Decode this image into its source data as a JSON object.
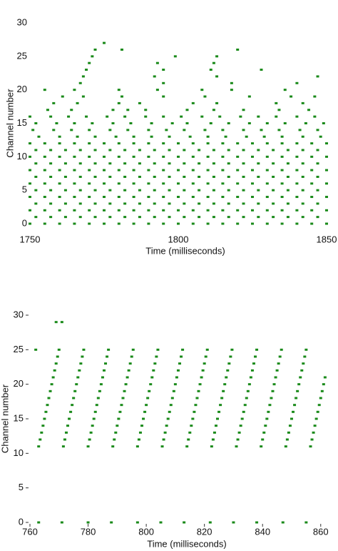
{
  "chart_data": [
    {
      "type": "raster",
      "xlabel": "Time (milliseconds)",
      "ylabel": "Channel number",
      "color": "#1a8a1a",
      "xlim": [
        1750,
        1850
      ],
      "ylim": [
        0,
        30
      ],
      "xticks": [
        1750,
        1800,
        1850
      ],
      "yticks": [
        0,
        5,
        10,
        15,
        20,
        25,
        30
      ],
      "tick_marks": false,
      "series": [
        {
          "y": 0,
          "x": [
            1750,
            1755,
            1760,
            1765,
            1770,
            1775,
            1780,
            1785,
            1790,
            1795,
            1800,
            1805,
            1810,
            1815,
            1820,
            1825,
            1830,
            1835,
            1840,
            1845,
            1850
          ]
        },
        {
          "y": 1,
          "x": [
            1752,
            1757,
            1762,
            1767,
            1772,
            1777,
            1782,
            1787,
            1792,
            1797,
            1802,
            1807,
            1812,
            1817,
            1822,
            1827,
            1832,
            1837,
            1842,
            1847
          ]
        },
        {
          "y": 2,
          "x": [
            1750,
            1755,
            1760,
            1765,
            1770,
            1775,
            1780,
            1785,
            1790,
            1795,
            1800,
            1805,
            1810,
            1815,
            1820,
            1825,
            1830,
            1835,
            1840,
            1845,
            1850
          ]
        },
        {
          "y": 3,
          "x": [
            1752,
            1757,
            1762,
            1767,
            1772,
            1777,
            1782,
            1787,
            1792,
            1797,
            1802,
            1807,
            1812,
            1817,
            1822,
            1827,
            1832,
            1837,
            1842,
            1847
          ]
        },
        {
          "y": 4,
          "x": [
            1750,
            1755,
            1760,
            1765,
            1770,
            1775,
            1780,
            1785,
            1790,
            1795,
            1800,
            1805,
            1810,
            1815,
            1820,
            1825,
            1830,
            1835,
            1840,
            1845,
            1850
          ]
        },
        {
          "y": 5,
          "x": [
            1752,
            1757,
            1762,
            1767,
            1772,
            1777,
            1782,
            1787,
            1792,
            1797,
            1802,
            1807,
            1812,
            1817,
            1822,
            1827,
            1832,
            1837,
            1842,
            1847
          ]
        },
        {
          "y": 6,
          "x": [
            1750,
            1755,
            1760,
            1765,
            1770,
            1775,
            1780,
            1785,
            1790,
            1795,
            1800,
            1805,
            1810,
            1815,
            1820,
            1825,
            1830,
            1835,
            1840,
            1845,
            1850
          ]
        },
        {
          "y": 7,
          "x": [
            1752,
            1757,
            1762,
            1767,
            1772,
            1777,
            1782,
            1787,
            1792,
            1797,
            1802,
            1807,
            1812,
            1817,
            1822,
            1827,
            1832,
            1837,
            1842,
            1847
          ]
        },
        {
          "y": 8,
          "x": [
            1750,
            1755,
            1760,
            1765,
            1770,
            1775,
            1780,
            1785,
            1790,
            1795,
            1800,
            1805,
            1810,
            1815,
            1820,
            1825,
            1830,
            1835,
            1840,
            1845,
            1850
          ]
        },
        {
          "y": 9,
          "x": [
            1752,
            1757,
            1762,
            1767,
            1772,
            1777,
            1782,
            1787,
            1792,
            1797,
            1802,
            1807,
            1812,
            1817,
            1822,
            1827,
            1832,
            1837,
            1842,
            1847
          ]
        },
        {
          "y": 10,
          "x": [
            1750,
            1755,
            1760,
            1765,
            1770,
            1775,
            1780,
            1785,
            1790,
            1795,
            1800,
            1805,
            1810,
            1815,
            1820,
            1825,
            1830,
            1835,
            1840,
            1845,
            1850
          ]
        },
        {
          "y": 11,
          "x": [
            1752,
            1757,
            1762,
            1767,
            1772,
            1777,
            1782,
            1787,
            1792,
            1797,
            1802,
            1807,
            1812,
            1817,
            1822,
            1827,
            1832,
            1837,
            1842,
            1847
          ]
        },
        {
          "y": 12,
          "x": [
            1750,
            1755,
            1760,
            1765,
            1770,
            1775,
            1780,
            1785,
            1790,
            1795,
            1800,
            1805,
            1810,
            1815,
            1820,
            1825,
            1830,
            1835,
            1840,
            1845,
            1850
          ]
        },
        {
          "y": 13,
          "x": [
            1753,
            1760,
            1766,
            1772,
            1779,
            1785,
            1791,
            1797,
            1804,
            1810,
            1816,
            1823,
            1829,
            1835,
            1842,
            1848
          ]
        },
        {
          "y": 14,
          "x": [
            1751,
            1758,
            1764,
            1770,
            1777,
            1783,
            1790,
            1796,
            1802,
            1809,
            1815,
            1822,
            1828,
            1834,
            1841,
            1847
          ]
        },
        {
          "y": 15,
          "x": [
            1752,
            1759,
            1765,
            1771,
            1778,
            1784,
            1791,
            1798,
            1803,
            1811,
            1817,
            1824,
            1830,
            1836,
            1843,
            1849
          ]
        },
        {
          "y": 16,
          "x": [
            1750,
            1757,
            1763,
            1769,
            1776,
            1782,
            1789,
            1795,
            1801,
            1808,
            1814,
            1821,
            1827,
            1833,
            1840,
            1846
          ]
        },
        {
          "y": 17,
          "x": [
            1756,
            1764,
            1778,
            1783,
            1789,
            1803,
            1812,
            1822,
            1834,
            1844
          ]
        },
        {
          "y": 18,
          "x": [
            1758,
            1766,
            1780,
            1787,
            1805,
            1813,
            1833,
            1842
          ]
        },
        {
          "y": 19,
          "x": [
            1761,
            1768,
            1781,
            1795,
            1809,
            1824,
            1838,
            1846
          ]
        },
        {
          "y": 20,
          "x": [
            1755,
            1765,
            1780,
            1793,
            1808,
            1818,
            1836
          ]
        },
        {
          "y": 21,
          "x": [
            1767,
            1795,
            1818,
            1840
          ]
        },
        {
          "y": 22,
          "x": [
            1768,
            1792,
            1813,
            1847
          ]
        },
        {
          "y": 23,
          "x": [
            1769,
            1795,
            1811,
            1828
          ]
        },
        {
          "y": 24,
          "x": [
            1770,
            1793,
            1812
          ]
        },
        {
          "y": 25,
          "x": [
            1771,
            1799,
            1813
          ]
        },
        {
          "y": 26,
          "x": [
            1772,
            1781,
            1820
          ]
        },
        {
          "y": 27,
          "x": [
            1775
          ]
        }
      ]
    },
    {
      "type": "raster",
      "xlabel": "Time (milliseconds)",
      "ylabel": "Channel number",
      "color": "#1a8a1a",
      "xlim": [
        760,
        863
      ],
      "ylim": [
        0,
        30
      ],
      "xticks": [
        760,
        780,
        800,
        820,
        840,
        860
      ],
      "yticks": [
        0,
        5,
        10,
        15,
        20,
        25,
        30
      ],
      "tick_marks": true,
      "series": [
        {
          "y": 0,
          "x": [
            763,
            771,
            780,
            788,
            797,
            805,
            813,
            822,
            830,
            838,
            847,
            855
          ]
        },
        {
          "y": 11,
          "x": [
            763,
            771.5,
            780,
            788.5,
            797,
            805.5,
            814,
            822.5,
            831,
            839.5,
            848,
            856.5
          ]
        },
        {
          "y": 12,
          "x": [
            763.5,
            772,
            780.5,
            789,
            797.5,
            806,
            814.5,
            823,
            831.5,
            840,
            848.5,
            857
          ]
        },
        {
          "y": 13,
          "x": [
            764,
            772.5,
            781,
            789.5,
            798,
            806.5,
            815,
            823.5,
            832,
            840.5,
            849,
            857.5
          ]
        },
        {
          "y": 14,
          "x": [
            764.5,
            773,
            781.5,
            790,
            798.5,
            807,
            815.5,
            824,
            832.5,
            841,
            849.5,
            858
          ]
        },
        {
          "y": 15,
          "x": [
            765,
            773.5,
            782,
            790.5,
            799,
            807.5,
            816,
            824.5,
            833,
            841.5,
            850,
            858.5
          ]
        },
        {
          "y": 16,
          "x": [
            765.5,
            774,
            782.5,
            791,
            799.5,
            808,
            816.5,
            825,
            833.5,
            842,
            850.5,
            859
          ]
        },
        {
          "y": 17,
          "x": [
            766,
            774.5,
            783,
            791.5,
            800,
            808.5,
            817,
            825.5,
            834,
            842.5,
            851,
            859.5
          ]
        },
        {
          "y": 18,
          "x": [
            766.5,
            775,
            783.5,
            792,
            800.5,
            809,
            817.5,
            826,
            834.5,
            843,
            851.5,
            860
          ]
        },
        {
          "y": 19,
          "x": [
            767,
            775.5,
            784,
            792.5,
            801,
            809.5,
            818,
            826.5,
            835,
            843.5,
            852,
            860.5
          ]
        },
        {
          "y": 20,
          "x": [
            767.5,
            776,
            784.5,
            793,
            801.5,
            810,
            818.5,
            827,
            835.5,
            844,
            852.5,
            861
          ]
        },
        {
          "y": 21,
          "x": [
            768,
            776.5,
            785,
            793.5,
            802,
            810.5,
            819,
            827.5,
            836,
            844.5,
            853,
            861.5
          ]
        },
        {
          "y": 22,
          "x": [
            768.5,
            777,
            785.5,
            794,
            802.5,
            811,
            819.5,
            828,
            836.5,
            845,
            853.5
          ]
        },
        {
          "y": 23,
          "x": [
            769,
            777.5,
            786,
            794.5,
            803,
            811.5,
            820,
            828.5,
            837,
            845.5,
            854
          ]
        },
        {
          "y": 24,
          "x": [
            769.5,
            778,
            786.5,
            795,
            803.5,
            812,
            820.5,
            829,
            837.5,
            846,
            854.5
          ]
        },
        {
          "y": 25,
          "x": [
            762,
            770,
            778.5,
            787,
            795.5,
            804,
            812.5,
            821,
            829.5,
            838,
            846.5,
            855
          ]
        },
        {
          "y": 29,
          "x": [
            769,
            771
          ]
        }
      ]
    }
  ]
}
